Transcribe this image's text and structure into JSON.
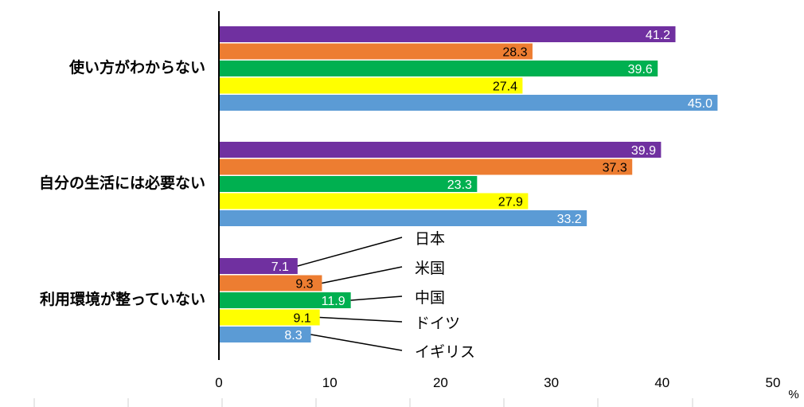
{
  "chart_data": {
    "type": "bar",
    "orientation": "horizontal",
    "categories": [
      "使い方がわからない",
      "自分の生活には必要ない",
      "利用環境が整っていない"
    ],
    "series": [
      {
        "name": "日本",
        "color": "#7030a0",
        "label_color": "#ffffff",
        "values": [
          41.2,
          39.9,
          7.1
        ]
      },
      {
        "name": "米国",
        "color": "#ed7d31",
        "label_color": "#000000",
        "values": [
          28.3,
          37.3,
          9.3
        ]
      },
      {
        "name": "中国",
        "color": "#00b050",
        "label_color": "#ffffff",
        "values": [
          39.6,
          23.3,
          11.9
        ]
      },
      {
        "name": "ドイツ",
        "color": "#ffff00",
        "label_color": "#000000",
        "values": [
          27.4,
          27.9,
          9.1
        ]
      },
      {
        "name": "イギリス",
        "color": "#5b9bd5",
        "label_color": "#ffffff",
        "values": [
          45.0,
          33.2,
          8.3
        ]
      }
    ],
    "value_labels": [
      [
        "41.2",
        "28.3",
        "39.6",
        "27.4",
        "45.0"
      ],
      [
        "39.9",
        "37.3",
        "23.3",
        "27.9",
        "33.2"
      ],
      [
        "7.1",
        "9.3",
        "11.9",
        "9.1",
        "8.3"
      ]
    ],
    "x_ticks": [
      "0",
      "10",
      "20",
      "30",
      "40",
      "50"
    ],
    "xlim": [
      0,
      50
    ],
    "unit": "%",
    "legend": "callout lines beside third category group",
    "grid": false
  }
}
